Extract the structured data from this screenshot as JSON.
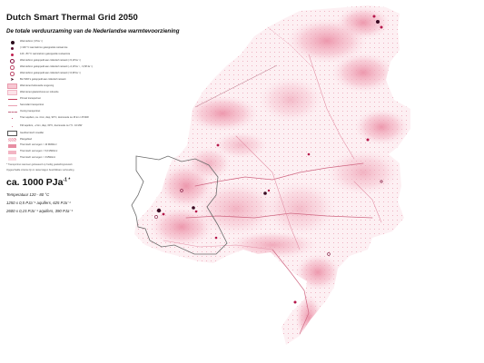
{
  "header": {
    "title": "Dutch Smart Thermal Grid 2050",
    "subtitle": "De totale verduurzaming van de Nederlandse warmtevoorziening"
  },
  "legend": {
    "items": [
      {
        "symbol": "dot-big",
        "label": "Warmtebron (>PJa⁻¹)"
      },
      {
        "symbol": "dot-dark",
        "label": "(<130 °C warmtebron gekoppelde restwarmte"
      },
      {
        "symbol": "dot-red",
        "label": "120 - 80 °C warmtebron gekoppelde restwarmte"
      },
      {
        "symbol": "ring",
        "label": "Warmtebron gekoppeld aan collectief netwerk (<0,1PJa⁻¹)"
      },
      {
        "symbol": "ring-s",
        "label": "Warmtebron gekoppeld aan collectief netwerk (~0,1PJa⁻¹, <2,6PJa⁻¹)"
      },
      {
        "symbol": "ring-s",
        "label": "Warmtebron gekoppeld aan collectief netwerk (>0,6PJa⁻¹)"
      },
      {
        "symbol": "arrow",
        "label": "Bio WKK's gekoppeld aan collectief netwerk"
      },
      {
        "symbol": "rect-pink",
        "label": "Warmtenet bebouwde omgeving"
      },
      {
        "symbol": "rect-light",
        "label": "Warmtenet glastuinbouw en industrie"
      },
      {
        "symbol": "line-red",
        "label": "Primair transportnet"
      },
      {
        "symbol": "line-pink",
        "label": "Secundair transportnet"
      },
      {
        "symbol": "line-dash",
        "label": "Overig transportnet"
      },
      {
        "symbol": "small-dot",
        "label": "Triaz aquifers, ca. 4 km, diep, 90°C, doorsnede ca 15 km / 25 MW"
      },
      {
        "symbol": "tiny-dot",
        "label": "KW aquifers, ~2 km, diep, 60°C, doorsnede ca 7,5 - 10 MW"
      },
      {
        "symbol": "outline",
        "label": "Geothermisch moedler"
      },
      {
        "symbol": "hatch",
        "label": "Plangebied"
      },
      {
        "symbol": "fill-1",
        "label": "Thermisch vermogen > 10 MW/km²"
      },
      {
        "symbol": "fill-2",
        "label": "Thermisch vermogen > 5,6 MW/km²"
      },
      {
        "symbol": "fill-3",
        "label": "Thermisch vermogen > 3 MW/km²"
      }
    ],
    "footnote_1": "* Transportnet wanneer gebaseerd op huidig gasleidingnetwerk",
    "footnote_2": "Opgeschalde criteria zijn in rastervlagen beschikbare verhouding"
  },
  "summary": {
    "total_value": "ca. 1000 PJa",
    "total_sup": "-1 *",
    "line_1": "Temperatuur 120 - 80 °C",
    "line_2": "1250 x 0,5 PJa⁻¹ aquifers, 625 PJa⁻¹",
    "line_3": "2600 x 0,15 PJa⁻¹ aquifers, 390 PJa⁻¹"
  },
  "colors": {
    "heat_high": "#e27b95",
    "heat_mid": "#f1a9bb",
    "heat_low": "#f9d6df",
    "source_dark": "#3a0a22",
    "source_red": "#b5164a",
    "boundary": "#6b6b6b"
  }
}
